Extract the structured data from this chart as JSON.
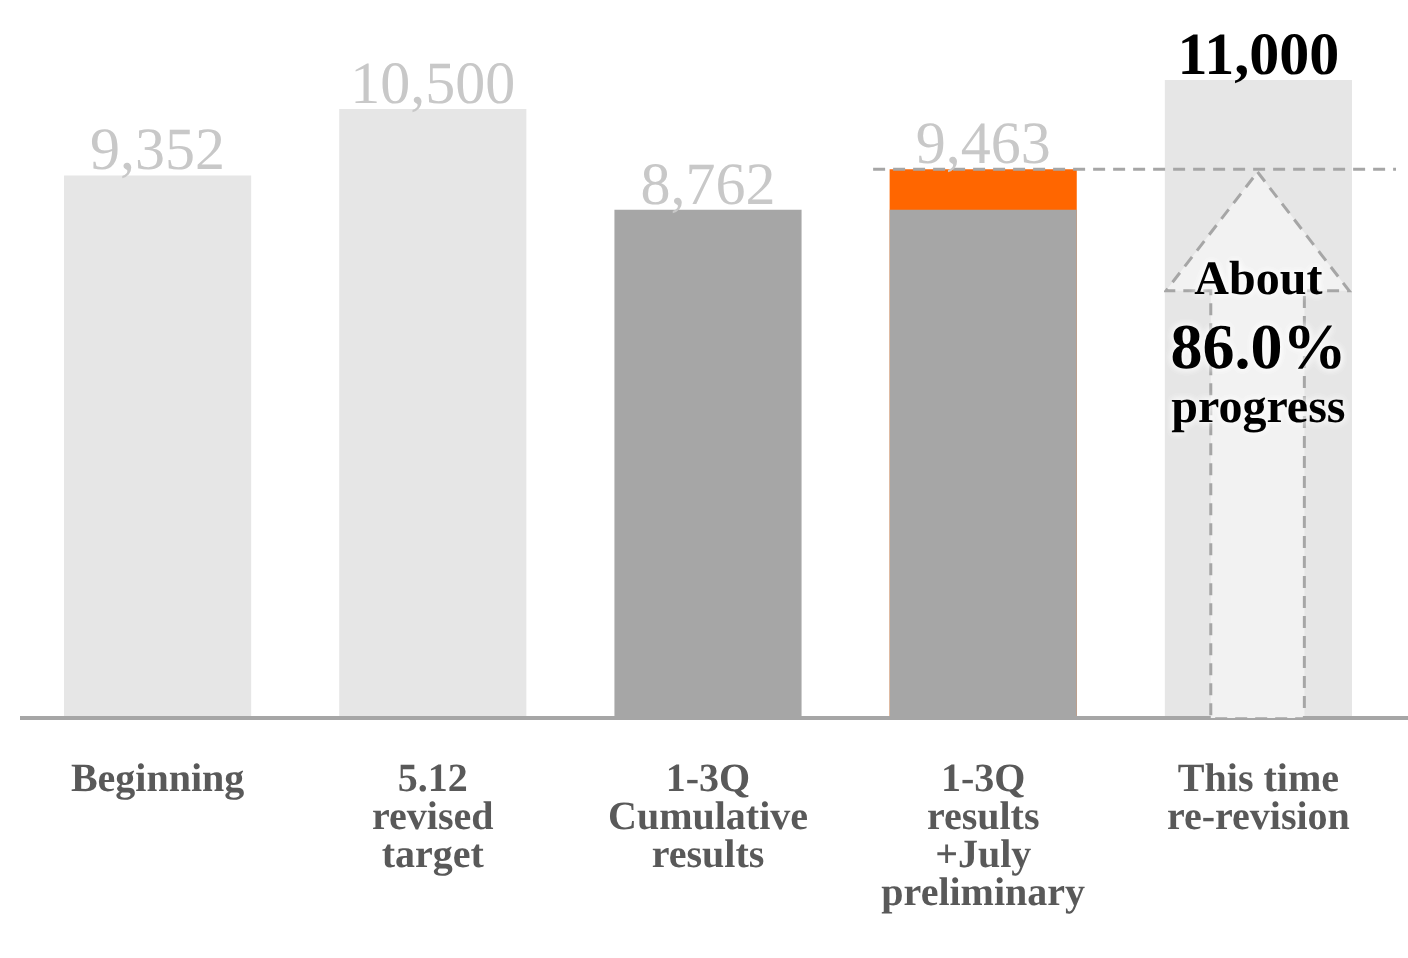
{
  "chart_data": {
    "type": "bar",
    "categories": [
      "Beginning",
      "5.12\nrevised\ntarget",
      "1-3Q\nCumulative\nresults",
      "1-3Q\nresults\n+July\npreliminary",
      "This time\nre-revision"
    ],
    "series": [
      {
        "colors": [
          "#e6e6e6",
          "#e6e6e6",
          "#a6a6a6",
          "#ff6600",
          "#e6e6e6"
        ],
        "values": [
          9352,
          10500,
          8762,
          9463,
          11000
        ],
        "value_labels": [
          "9,352",
          "10,500",
          "8,762",
          "9,463",
          "11,000"
        ]
      },
      {
        "color": "#a6a6a6",
        "values": [
          null,
          null,
          null,
          8762,
          null
        ]
      }
    ],
    "tick_labels": "x",
    "grid": false,
    "legend": false,
    "ref_lines": [
      {
        "axis": "y",
        "value": 9463,
        "label": null,
        "color": "#a6a6a6",
        "line_style": "dashed"
      }
    ],
    "annotations": [
      "About 86.0% progress"
    ]
  }
}
